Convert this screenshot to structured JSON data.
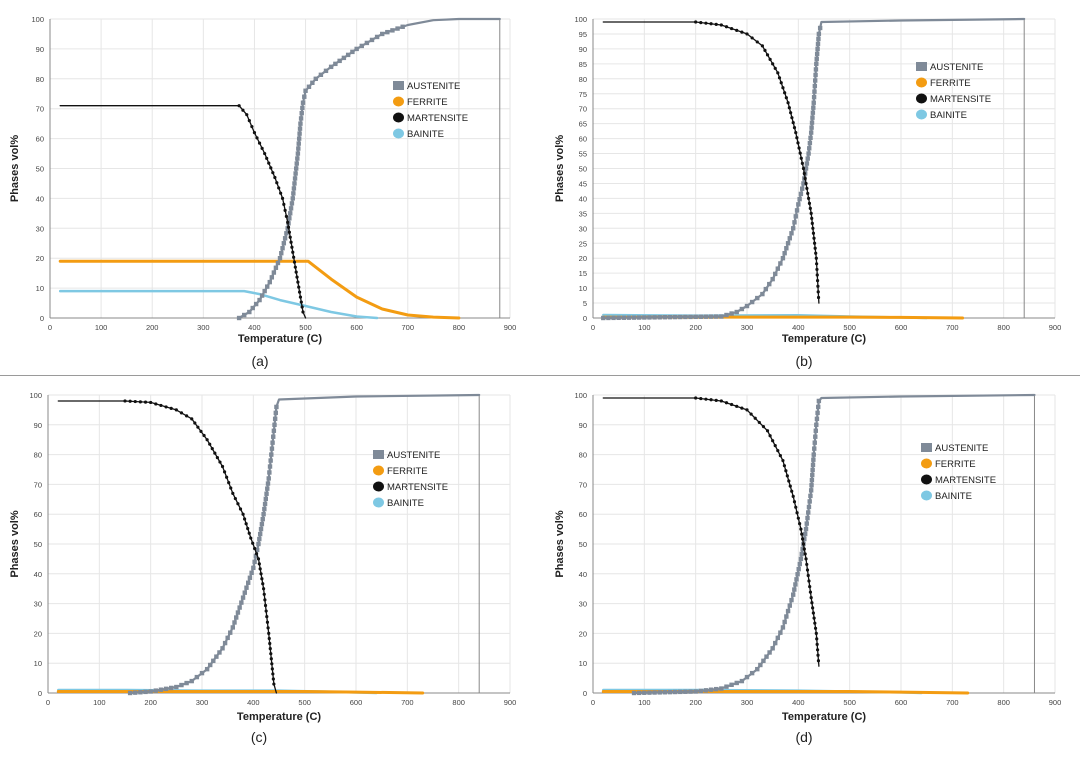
{
  "figure": {
    "panels": [
      "(a)",
      "(b)",
      "(c)",
      "(d)"
    ]
  },
  "colors": {
    "AUSTENITE": "#7f8a98",
    "FERRITE": "#f39c12",
    "MARTENSITE": "#111111",
    "BAINITE": "#7ec8e3"
  },
  "chart_data": [
    {
      "type": "line",
      "panel_label": "(a)",
      "xlabel": "Temperature (C)",
      "ylabel": "Phases vol%",
      "xlim": [
        0,
        900
      ],
      "ylim": [
        0,
        100
      ],
      "xticks": [
        "0",
        "100",
        "200",
        "300",
        "400",
        "500",
        "600",
        "700",
        "800",
        "900"
      ],
      "yticks": [
        "0",
        "10",
        "20",
        "30",
        "40",
        "50",
        "60",
        "70",
        "80",
        "90",
        "100"
      ],
      "grid": true,
      "legend_position": "right",
      "end_line_x": 880,
      "series": [
        {
          "name": "AUSTENITE",
          "points": [
            [
              370,
              0
            ],
            [
              390,
              2
            ],
            [
              410,
              6
            ],
            [
              430,
              12
            ],
            [
              450,
              20
            ],
            [
              465,
              30
            ],
            [
              475,
              40
            ],
            [
              485,
              55
            ],
            [
              490,
              65
            ],
            [
              495,
              72
            ],
            [
              500,
              76
            ],
            [
              520,
              80
            ],
            [
              550,
              84
            ],
            [
              600,
              90
            ],
            [
              650,
              95
            ],
            [
              700,
              98
            ],
            [
              750,
              99.6
            ],
            [
              800,
              100
            ],
            [
              880,
              100
            ]
          ]
        },
        {
          "name": "FERRITE",
          "points": [
            [
              20,
              19
            ],
            [
              480,
              19
            ],
            [
              505,
              19
            ],
            [
              520,
              17
            ],
            [
              550,
              13
            ],
            [
              600,
              7
            ],
            [
              650,
              3
            ],
            [
              700,
              1
            ],
            [
              750,
              0.3
            ],
            [
              800,
              0
            ]
          ]
        },
        {
          "name": "MARTENSITE",
          "points": [
            [
              20,
              71
            ],
            [
              370,
              71
            ],
            [
              385,
              68
            ],
            [
              400,
              62
            ],
            [
              420,
              55
            ],
            [
              440,
              47
            ],
            [
              455,
              40
            ],
            [
              465,
              32
            ],
            [
              475,
              22
            ],
            [
              485,
              12
            ],
            [
              495,
              2
            ],
            [
              500,
              0
            ]
          ]
        },
        {
          "name": "BAINITE",
          "points": [
            [
              20,
              9
            ],
            [
              380,
              9
            ],
            [
              410,
              8
            ],
            [
              450,
              6
            ],
            [
              500,
              4
            ],
            [
              550,
              2
            ],
            [
              600,
              0.5
            ],
            [
              640,
              0
            ]
          ]
        }
      ]
    },
    {
      "type": "line",
      "panel_label": "(b)",
      "xlabel": "Temperature (C)",
      "ylabel": "Phases vol%",
      "xlim": [
        0,
        900
      ],
      "ylim": [
        0,
        100
      ],
      "xticks": [
        "0",
        "100",
        "200",
        "300",
        "400",
        "500",
        "600",
        "700",
        "800",
        "900"
      ],
      "yticks": [
        "0",
        "5",
        "10",
        "15",
        "20",
        "25",
        "30",
        "35",
        "40",
        "45",
        "50",
        "55",
        "60",
        "65",
        "70",
        "75",
        "80",
        "85",
        "90",
        "95",
        "100"
      ],
      "grid": true,
      "legend_position": "top-right",
      "end_line_x": 840,
      "series": [
        {
          "name": "AUSTENITE",
          "points": [
            [
              20,
              0
            ],
            [
              250,
              0.5
            ],
            [
              280,
              2
            ],
            [
              300,
              4
            ],
            [
              330,
              8
            ],
            [
              350,
              13
            ],
            [
              370,
              20
            ],
            [
              390,
              30
            ],
            [
              400,
              38
            ],
            [
              410,
              45
            ],
            [
              420,
              55
            ],
            [
              425,
              62
            ],
            [
              430,
              72
            ],
            [
              435,
              85
            ],
            [
              440,
              95
            ],
            [
              445,
              99
            ],
            [
              600,
              99.5
            ],
            [
              840,
              100
            ]
          ]
        },
        {
          "name": "FERRITE",
          "points": [
            [
              20,
              0.3
            ],
            [
              500,
              0.3
            ],
            [
              600,
              0.2
            ],
            [
              720,
              0
            ]
          ]
        },
        {
          "name": "MARTENSITE",
          "points": [
            [
              20,
              99
            ],
            [
              200,
              99
            ],
            [
              250,
              98
            ],
            [
              300,
              95
            ],
            [
              330,
              91
            ],
            [
              360,
              82
            ],
            [
              380,
              72
            ],
            [
              395,
              62
            ],
            [
              410,
              50
            ],
            [
              425,
              35
            ],
            [
              435,
              20
            ],
            [
              440,
              5
            ]
          ]
        },
        {
          "name": "BAINITE",
          "points": [
            [
              20,
              1
            ],
            [
              200,
              0.8
            ],
            [
              400,
              0.9
            ],
            [
              500,
              0.5
            ],
            [
              600,
              0.2
            ],
            [
              650,
              0
            ]
          ]
        }
      ]
    },
    {
      "type": "line",
      "panel_label": "(c)",
      "xlabel": "Temperature (C)",
      "ylabel": "Phases vol%",
      "xlim": [
        0,
        900
      ],
      "ylim": [
        0,
        100
      ],
      "xticks": [
        "0",
        "100",
        "200",
        "300",
        "400",
        "500",
        "600",
        "700",
        "800",
        "900"
      ],
      "yticks": [
        "0",
        "10",
        "20",
        "30",
        "40",
        "50",
        "60",
        "70",
        "80",
        "90",
        "100"
      ],
      "grid": true,
      "legend_position": "right",
      "end_line_x": 840,
      "series": [
        {
          "name": "AUSTENITE",
          "points": [
            [
              160,
              0
            ],
            [
              200,
              0.5
            ],
            [
              250,
              2
            ],
            [
              280,
              4
            ],
            [
              310,
              8
            ],
            [
              340,
              15
            ],
            [
              360,
              22
            ],
            [
              380,
              32
            ],
            [
              400,
              42
            ],
            [
              410,
              50
            ],
            [
              420,
              60
            ],
            [
              430,
              72
            ],
            [
              435,
              80
            ],
            [
              440,
              88
            ],
            [
              445,
              96
            ],
            [
              450,
              98.5
            ],
            [
              600,
              99.5
            ],
            [
              840,
              100
            ]
          ]
        },
        {
          "name": "FERRITE",
          "points": [
            [
              20,
              0.5
            ],
            [
              500,
              0.5
            ],
            [
              600,
              0.3
            ],
            [
              730,
              0
            ]
          ]
        },
        {
          "name": "MARTENSITE",
          "points": [
            [
              20,
              98
            ],
            [
              150,
              98
            ],
            [
              200,
              97.5
            ],
            [
              250,
              95
            ],
            [
              280,
              92
            ],
            [
              310,
              85
            ],
            [
              340,
              76
            ],
            [
              360,
              67
            ],
            [
              380,
              60
            ],
            [
              395,
              52
            ],
            [
              410,
              45
            ],
            [
              420,
              35
            ],
            [
              430,
              20
            ],
            [
              440,
              3
            ],
            [
              445,
              0
            ]
          ]
        },
        {
          "name": "BAINITE",
          "points": [
            [
              20,
              1
            ],
            [
              150,
              1
            ],
            [
              300,
              0.8
            ],
            [
              450,
              0.8
            ],
            [
              550,
              0.4
            ],
            [
              640,
              0
            ]
          ]
        }
      ]
    },
    {
      "type": "line",
      "panel_label": "(d)",
      "xlabel": "Temperature (C)",
      "ylabel": "Phases vol%",
      "xlim": [
        0,
        900
      ],
      "ylim": [
        0,
        100
      ],
      "xticks": [
        "0",
        "100",
        "200",
        "300",
        "400",
        "500",
        "600",
        "700",
        "800",
        "900"
      ],
      "yticks": [
        "0",
        "10",
        "20",
        "30",
        "40",
        "50",
        "60",
        "70",
        "80",
        "90",
        "100"
      ],
      "grid": true,
      "legend_position": "right",
      "end_line_x": 860,
      "series": [
        {
          "name": "AUSTENITE",
          "points": [
            [
              80,
              0
            ],
            [
              200,
              0.5
            ],
            [
              250,
              1.5
            ],
            [
              290,
              4
            ],
            [
              320,
              8
            ],
            [
              350,
              15
            ],
            [
              370,
              22
            ],
            [
              390,
              33
            ],
            [
              405,
              45
            ],
            [
              415,
              55
            ],
            [
              425,
              68
            ],
            [
              430,
              80
            ],
            [
              435,
              90
            ],
            [
              440,
              98
            ],
            [
              445,
              99
            ],
            [
              600,
              99.5
            ],
            [
              860,
              100
            ]
          ]
        },
        {
          "name": "FERRITE",
          "points": [
            [
              20,
              0.5
            ],
            [
              500,
              0.5
            ],
            [
              600,
              0.3
            ],
            [
              730,
              0
            ]
          ]
        },
        {
          "name": "MARTENSITE",
          "points": [
            [
              20,
              99
            ],
            [
              200,
              99
            ],
            [
              250,
              98
            ],
            [
              300,
              95
            ],
            [
              340,
              88
            ],
            [
              370,
              78
            ],
            [
              390,
              66
            ],
            [
              405,
              55
            ],
            [
              415,
              45
            ],
            [
              425,
              32
            ],
            [
              435,
              20
            ],
            [
              440,
              9
            ]
          ]
        },
        {
          "name": "BAINITE",
          "points": [
            [
              20,
              1
            ],
            [
              200,
              1
            ],
            [
              400,
              0.8
            ],
            [
              500,
              0.5
            ],
            [
              600,
              0.2
            ],
            [
              640,
              0
            ]
          ]
        }
      ]
    }
  ]
}
